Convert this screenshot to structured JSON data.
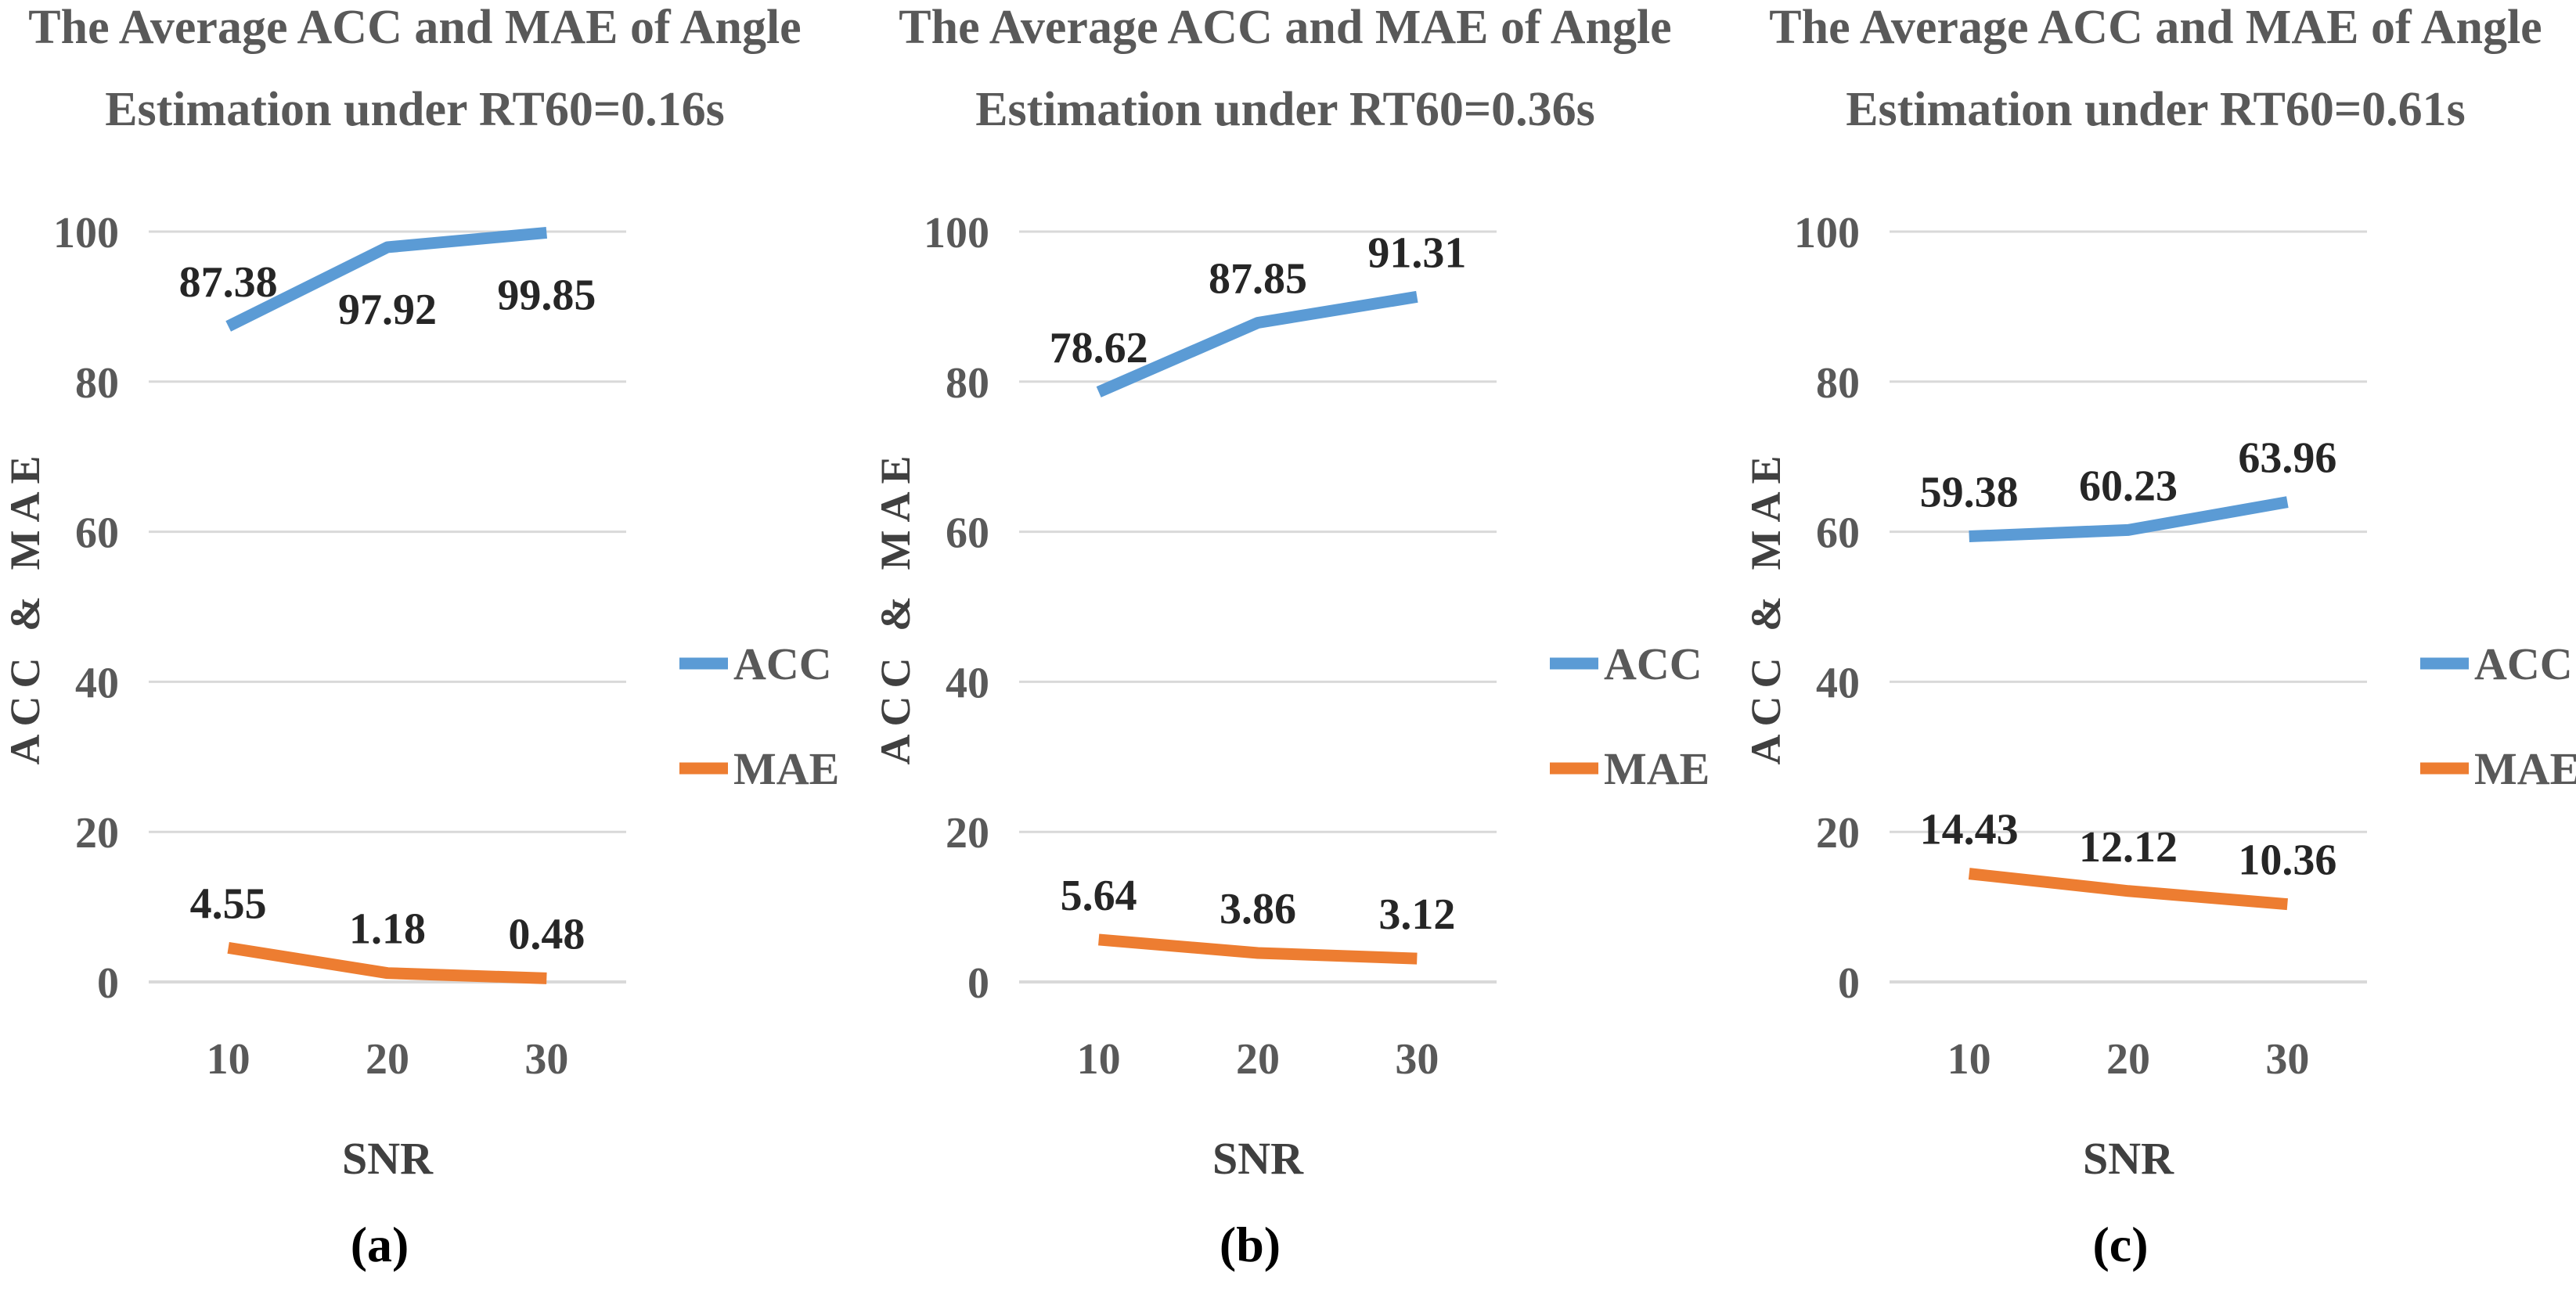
{
  "colors": {
    "acc": "#5B9BD5",
    "mae": "#ED7D31",
    "grid": "#D9D9D9"
  },
  "chart_data": [
    {
      "type": "line",
      "panel_label": "(a)",
      "title_line1": "The Average ACC and MAE of Angle",
      "title_line2": "Estimation under RT60=0.16s",
      "xlabel": "SNR",
      "ylabel": "ACC & MAE",
      "categories": [
        "10",
        "20",
        "30"
      ],
      "ylim": [
        0,
        100
      ],
      "yticks": [
        0,
        20,
        40,
        60,
        80,
        100
      ],
      "legend_position": "right",
      "series": [
        {
          "name": "ACC",
          "values": [
            87.38,
            97.92,
            99.85
          ],
          "labels": [
            "87.38",
            "97.92",
            "99.85"
          ],
          "label_pos": [
            "above",
            "below",
            "below"
          ]
        },
        {
          "name": "MAE",
          "values": [
            4.55,
            1.18,
            0.48
          ],
          "labels": [
            "4.55",
            "1.18",
            "0.48"
          ],
          "label_pos": [
            "above",
            "above",
            "above"
          ]
        }
      ]
    },
    {
      "type": "line",
      "panel_label": "(b)",
      "title_line1": "The Average ACC and MAE of Angle",
      "title_line2": "Estimation under RT60=0.36s",
      "xlabel": "SNR",
      "ylabel": "ACC & MAE",
      "categories": [
        "10",
        "20",
        "30"
      ],
      "ylim": [
        0,
        100
      ],
      "yticks": [
        0,
        20,
        40,
        60,
        80,
        100
      ],
      "legend_position": "right",
      "series": [
        {
          "name": "ACC",
          "values": [
            78.62,
            87.85,
            91.31
          ],
          "labels": [
            "78.62",
            "87.85",
            "91.31"
          ],
          "label_pos": [
            "above",
            "above",
            "above"
          ]
        },
        {
          "name": "MAE",
          "values": [
            5.64,
            3.86,
            3.12
          ],
          "labels": [
            "5.64",
            "3.86",
            "3.12"
          ],
          "label_pos": [
            "above",
            "above",
            "above"
          ]
        }
      ]
    },
    {
      "type": "line",
      "panel_label": "(c)",
      "title_line1": "The Average ACC and MAE of Angle",
      "title_line2": "Estimation under RT60=0.61s",
      "xlabel": "SNR",
      "ylabel": "ACC & MAE",
      "categories": [
        "10",
        "20",
        "30"
      ],
      "ylim": [
        0,
        100
      ],
      "yticks": [
        0,
        20,
        40,
        60,
        80,
        100
      ],
      "legend_position": "right",
      "series": [
        {
          "name": "ACC",
          "values": [
            59.38,
            60.23,
            63.96
          ],
          "labels": [
            "59.38",
            "60.23",
            "63.96"
          ],
          "label_pos": [
            "above",
            "above",
            "above"
          ]
        },
        {
          "name": "MAE",
          "values": [
            14.43,
            12.12,
            10.36
          ],
          "labels": [
            "14.43",
            "12.12",
            "10.36"
          ],
          "label_pos": [
            "above",
            "above",
            "above"
          ]
        }
      ]
    }
  ]
}
